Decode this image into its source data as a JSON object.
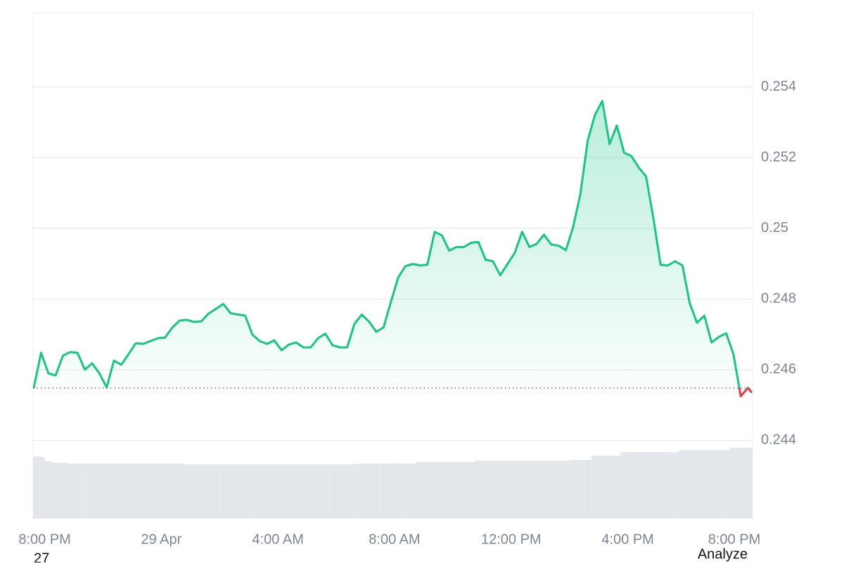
{
  "chart_data": {
    "type": "line",
    "x": [
      -0.375,
      -0.125,
      0.125,
      0.375,
      0.625,
      0.875,
      1.125,
      1.375,
      1.625,
      1.875,
      2.125,
      2.375,
      2.625,
      2.875,
      3.125,
      3.375,
      3.625,
      3.875,
      4.125,
      4.375,
      4.625,
      4.875,
      5.125,
      5.375,
      5.625,
      5.875,
      6.125,
      6.375,
      6.625,
      6.875,
      7.125,
      7.375,
      7.625,
      7.875,
      8.125,
      8.375,
      8.625,
      8.875,
      9.125,
      9.375,
      9.625,
      9.875,
      10.125,
      10.375,
      10.625,
      10.875,
      11.125,
      11.375,
      11.625,
      11.875,
      12.125,
      12.375,
      12.625,
      12.875,
      13.125,
      13.375,
      13.625,
      13.875,
      14.125,
      14.375,
      14.625,
      14.875,
      15.125,
      15.375,
      15.625,
      15.875,
      16.125,
      16.375,
      16.625,
      16.875,
      17.125,
      17.375,
      17.625,
      17.875,
      18.125,
      18.375,
      18.625,
      18.875,
      19.125,
      19.375,
      19.625,
      19.875,
      20.125,
      20.375,
      20.625,
      20.875,
      21.125,
      21.375,
      21.625,
      21.875,
      22.125,
      22.375,
      22.625,
      22.875,
      23.125,
      23.375,
      23.625,
      23.875,
      24.125,
      24.25
    ],
    "values": [
      0.24548,
      0.24648,
      0.2459,
      0.24584,
      0.2464,
      0.2465,
      0.24648,
      0.246,
      0.24618,
      0.2459,
      0.2455,
      0.24626,
      0.24614,
      0.24644,
      0.24675,
      0.24673,
      0.24681,
      0.24689,
      0.24691,
      0.24719,
      0.24739,
      0.24741,
      0.24735,
      0.24737,
      0.24759,
      0.24772,
      0.24786,
      0.2476,
      0.24756,
      0.24753,
      0.24699,
      0.24681,
      0.24673,
      0.24683,
      0.24655,
      0.24671,
      0.24677,
      0.24663,
      0.24663,
      0.24689,
      0.24702,
      0.24669,
      0.24663,
      0.24663,
      0.2473,
      0.24756,
      0.24736,
      0.24707,
      0.2472,
      0.24792,
      0.24861,
      0.24893,
      0.24899,
      0.24895,
      0.24897,
      0.2499,
      0.2498,
      0.24937,
      0.24947,
      0.24947,
      0.24959,
      0.24961,
      0.24911,
      0.24907,
      0.24867,
      0.24899,
      0.24931,
      0.2499,
      0.24947,
      0.24956,
      0.24982,
      0.24954,
      0.24951,
      0.24938,
      0.25004,
      0.25097,
      0.25248,
      0.25321,
      0.2536,
      0.25238,
      0.25291,
      0.25214,
      0.25204,
      0.25172,
      0.25147,
      0.2503,
      0.24897,
      0.24895,
      0.24907,
      0.24895,
      0.24788,
      0.24733,
      0.24753,
      0.24677,
      0.24693,
      0.24703,
      0.24644,
      0.24525,
      0.24549,
      0.24535
    ],
    "volume": [
      87,
      86,
      80,
      78,
      78,
      77,
      77,
      77,
      77,
      77,
      77,
      77,
      77,
      77,
      77,
      77,
      77,
      77,
      77,
      77,
      77,
      76,
      76,
      76,
      76,
      76,
      76,
      76,
      76,
      76,
      76,
      76,
      76,
      76,
      76,
      76,
      76,
      76,
      76,
      76,
      76,
      76,
      76,
      76,
      76,
      77,
      77,
      77,
      77,
      77,
      77,
      77,
      77,
      79,
      79,
      79,
      79,
      79,
      79,
      79,
      79,
      81,
      81,
      81,
      81,
      81,
      81,
      81,
      81,
      81,
      81,
      81,
      81,
      81,
      82,
      82,
      82,
      88,
      88,
      88,
      88,
      93,
      93,
      93,
      93,
      93,
      93,
      93,
      93,
      96,
      96,
      96,
      96,
      96,
      96,
      96,
      99,
      99,
      99,
      99
    ],
    "baseline": 0.24548,
    "up_color": "#16c784",
    "down_color": "#ea3943",
    "volume_color": "#e3e6ea",
    "ylim": [
      0.2418,
      0.2561
    ],
    "yticks": [
      0.244,
      0.246,
      0.248,
      0.25,
      0.252,
      0.254
    ],
    "xlim": [
      -0.4,
      24.28
    ],
    "xticks": [
      {
        "value": 0,
        "label": "8:00 PM"
      },
      {
        "value": 4,
        "label": "29 Apr"
      },
      {
        "value": 8,
        "label": "4:00 AM"
      },
      {
        "value": 12,
        "label": "8:00 AM"
      },
      {
        "value": 16,
        "label": "12:00 PM"
      },
      {
        "value": 20,
        "label": "4:00 PM"
      },
      {
        "value": 24,
        "label": "8:00 PM"
      }
    ],
    "grid": true,
    "footer_left": "27",
    "footer_right": "Analyze"
  }
}
